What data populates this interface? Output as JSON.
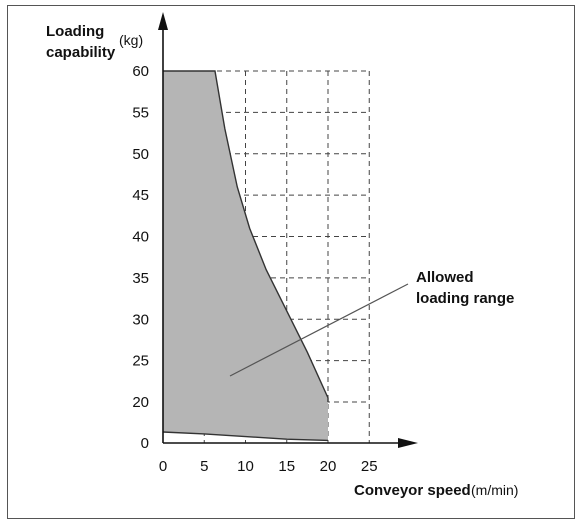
{
  "chart_data": {
    "type": "area",
    "ylabel_line1": "Loading",
    "ylabel_line2": "capability",
    "ylabel_unit": "(kg)",
    "xlabel": "Conveyor speed",
    "xlabel_unit": "(m/min)",
    "annotation_line1": "Allowed",
    "annotation_line2": "loading range",
    "x_ticks": [
      0,
      5,
      10,
      15,
      20,
      25
    ],
    "y_ticks": [
      0,
      20,
      25,
      30,
      35,
      40,
      45,
      50,
      55,
      60
    ],
    "grid": "dashed",
    "region_upper": [
      {
        "x": 0,
        "y": 60
      },
      {
        "x": 6.3,
        "y": 60
      },
      {
        "x": 7.5,
        "y": 53
      },
      {
        "x": 9,
        "y": 46
      },
      {
        "x": 10.5,
        "y": 41
      },
      {
        "x": 12.5,
        "y": 36
      },
      {
        "x": 15,
        "y": 31
      },
      {
        "x": 17.5,
        "y": 26
      },
      {
        "x": 20,
        "y": 20.5
      },
      {
        "x": 20,
        "y": 20
      }
    ],
    "region_lower": [
      {
        "x": 0,
        "y": 1.5
      },
      {
        "x": 5,
        "y": 1.2
      },
      {
        "x": 10,
        "y": 0.8
      },
      {
        "x": 15,
        "y": 0.4
      },
      {
        "x": 20,
        "y": 0.2
      }
    ],
    "fill_color": "#b5b5b5",
    "line_color": "#333333"
  }
}
